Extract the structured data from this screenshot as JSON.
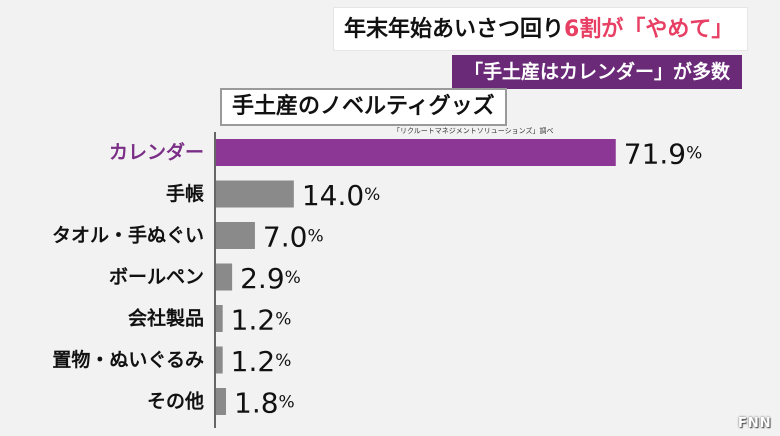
{
  "captions": {
    "line1_pre": "年末年始あいさつ回り",
    "line1_hl": "6割が「やめて」",
    "line2": "「手土産はカレンダー」が多数"
  },
  "chart_data": {
    "type": "bar",
    "orientation": "horizontal",
    "title": "手土産のノベルティグッズ",
    "source": "「リクルートマネジメントソリューションズ」調べ",
    "categories": [
      "カレンダー",
      "手帳",
      "タオル・手ぬぐい",
      "ボールペン",
      "会社製品",
      "置物・ぬいぐるみ",
      "その他"
    ],
    "values": [
      71.9,
      14.0,
      7.0,
      2.9,
      1.2,
      1.2,
      1.8
    ],
    "labels": [
      "71.9",
      "14.0",
      "7.0",
      "2.9",
      "1.2",
      "1.2",
      "1.8"
    ],
    "unit": "%",
    "highlight_index": 0,
    "colors": {
      "highlight": "#8c3795",
      "bar": "#8a8a8a",
      "highlight_text": "#7a2e86"
    },
    "xlim": [
      0,
      100
    ]
  },
  "logo": "FNN"
}
